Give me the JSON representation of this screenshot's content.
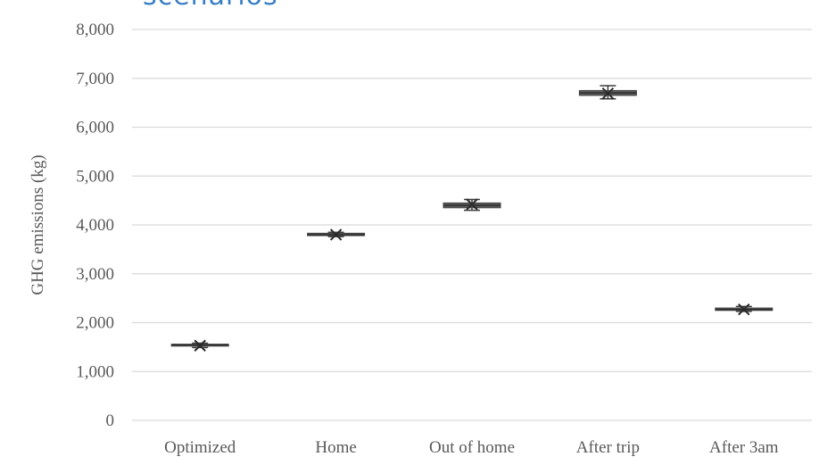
{
  "header_fragment": "scenarios",
  "chart_data": {
    "type": "box",
    "title": "",
    "xlabel": "",
    "ylabel": "GHG emissions (kg)",
    "ylim": [
      0,
      8000
    ],
    "yticks": [
      0,
      1000,
      2000,
      3000,
      4000,
      5000,
      6000,
      7000,
      8000
    ],
    "ytick_labels": [
      "0",
      "1,000",
      "2,000",
      "3,000",
      "4,000",
      "5,000",
      "6,000",
      "7,000",
      "8,000"
    ],
    "grid": "horizontal",
    "categories": [
      "Optimized",
      "Home",
      "Out of home",
      "After trip",
      "After 3am"
    ],
    "boxes": [
      {
        "category": "Optimized",
        "min": 1490,
        "q1": 1520,
        "median": 1540,
        "q3": 1560,
        "max": 1580,
        "mean": 1530
      },
      {
        "category": "Home",
        "min": 3760,
        "q1": 3780,
        "median": 3800,
        "q3": 3830,
        "max": 3850,
        "mean": 3800
      },
      {
        "category": "Out of home",
        "min": 4300,
        "q1": 4350,
        "median": 4400,
        "q3": 4450,
        "max": 4520,
        "mean": 4420
      },
      {
        "category": "After trip",
        "min": 6580,
        "q1": 6650,
        "median": 6700,
        "q3": 6750,
        "max": 6850,
        "mean": 6690
      },
      {
        "category": "After 3am",
        "min": 2230,
        "q1": 2250,
        "median": 2270,
        "q3": 2300,
        "max": 2330,
        "mean": 2270
      }
    ],
    "colors": {
      "box": "#5a5a5a",
      "whisker": "#3c3c3c",
      "grid": "#d9d9d9",
      "text": "#595959",
      "header": "#3a7fc4"
    }
  }
}
